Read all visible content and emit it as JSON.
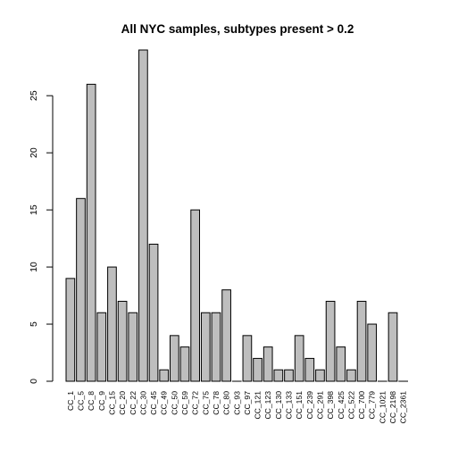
{
  "chart_data": {
    "type": "bar",
    "title": "All NYC samples, subtypes present > 0.2",
    "xlabel": "",
    "ylabel": "",
    "categories": [
      "CC_1",
      "CC_5",
      "CC_8",
      "CC_9",
      "CC_15",
      "CC_20",
      "CC_22",
      "CC_30",
      "CC_45",
      "CC_49",
      "CC_50",
      "CC_59",
      "CC_72",
      "CC_75",
      "CC_78",
      "CC_80",
      "CC_93",
      "CC_97",
      "CC_121",
      "CC_123",
      "CC_130",
      "CC_133",
      "CC_151",
      "CC_239",
      "CC_291",
      "CC_398",
      "CC_425",
      "CC_522",
      "CC_700",
      "CC_779",
      "CC_1021",
      "CC_2198",
      "CC_2361"
    ],
    "values": [
      9,
      16,
      26,
      6,
      10,
      7,
      6,
      29,
      12,
      1,
      4,
      3,
      15,
      6,
      6,
      8,
      0,
      4,
      2,
      3,
      1,
      1,
      4,
      2,
      1,
      7,
      3,
      1,
      7,
      5,
      0,
      6,
      0
    ],
    "ylim": [
      0,
      29
    ],
    "yticks": [
      0,
      5,
      10,
      15,
      20,
      25
    ],
    "grid": false,
    "legend": "none",
    "colors": {
      "bar_fill": "#bebebe",
      "bar_stroke": "#000000",
      "text": "#000000",
      "background": "#ffffff"
    }
  }
}
